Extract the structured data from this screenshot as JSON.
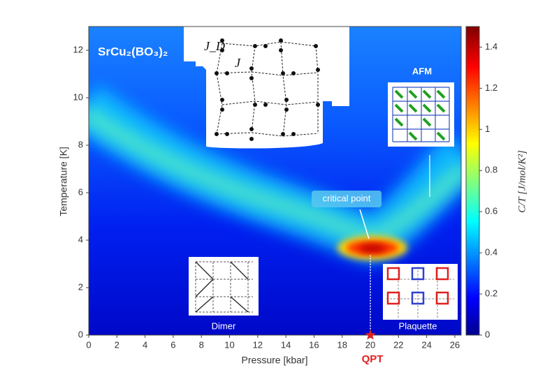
{
  "chart_data": {
    "type": "heatmap",
    "title": "SrCu₂(BO₃)₂",
    "xlabel": "Pressure [kbar]",
    "ylabel": "Temperature [K]",
    "xlim": [
      0,
      26.45
    ],
    "xticks": [
      0,
      2,
      4,
      6,
      8,
      10,
      12,
      14,
      16,
      18,
      20,
      22,
      24,
      26
    ],
    "ylim": [
      0,
      13
    ],
    "yticks": [
      0,
      2,
      4,
      6,
      8,
      10,
      12
    ],
    "colorbar": {
      "label": "C/T [J/mol/K²]",
      "zlim": [
        0,
        1.5
      ],
      "zticks": [
        0,
        0.2,
        0.4,
        0.6,
        0.8,
        1,
        1.2,
        1.4
      ]
    },
    "annotations": {
      "critical_point": "critical point",
      "afm": "AFM",
      "dimer": "Dimer",
      "plaquette": "Plaquette",
      "qpt": "QPT",
      "jd": "J_D",
      "j": "J"
    },
    "critical_point": {
      "x": 20,
      "y": 3.6
    },
    "qpt": {
      "x": 20,
      "y": 0
    }
  }
}
